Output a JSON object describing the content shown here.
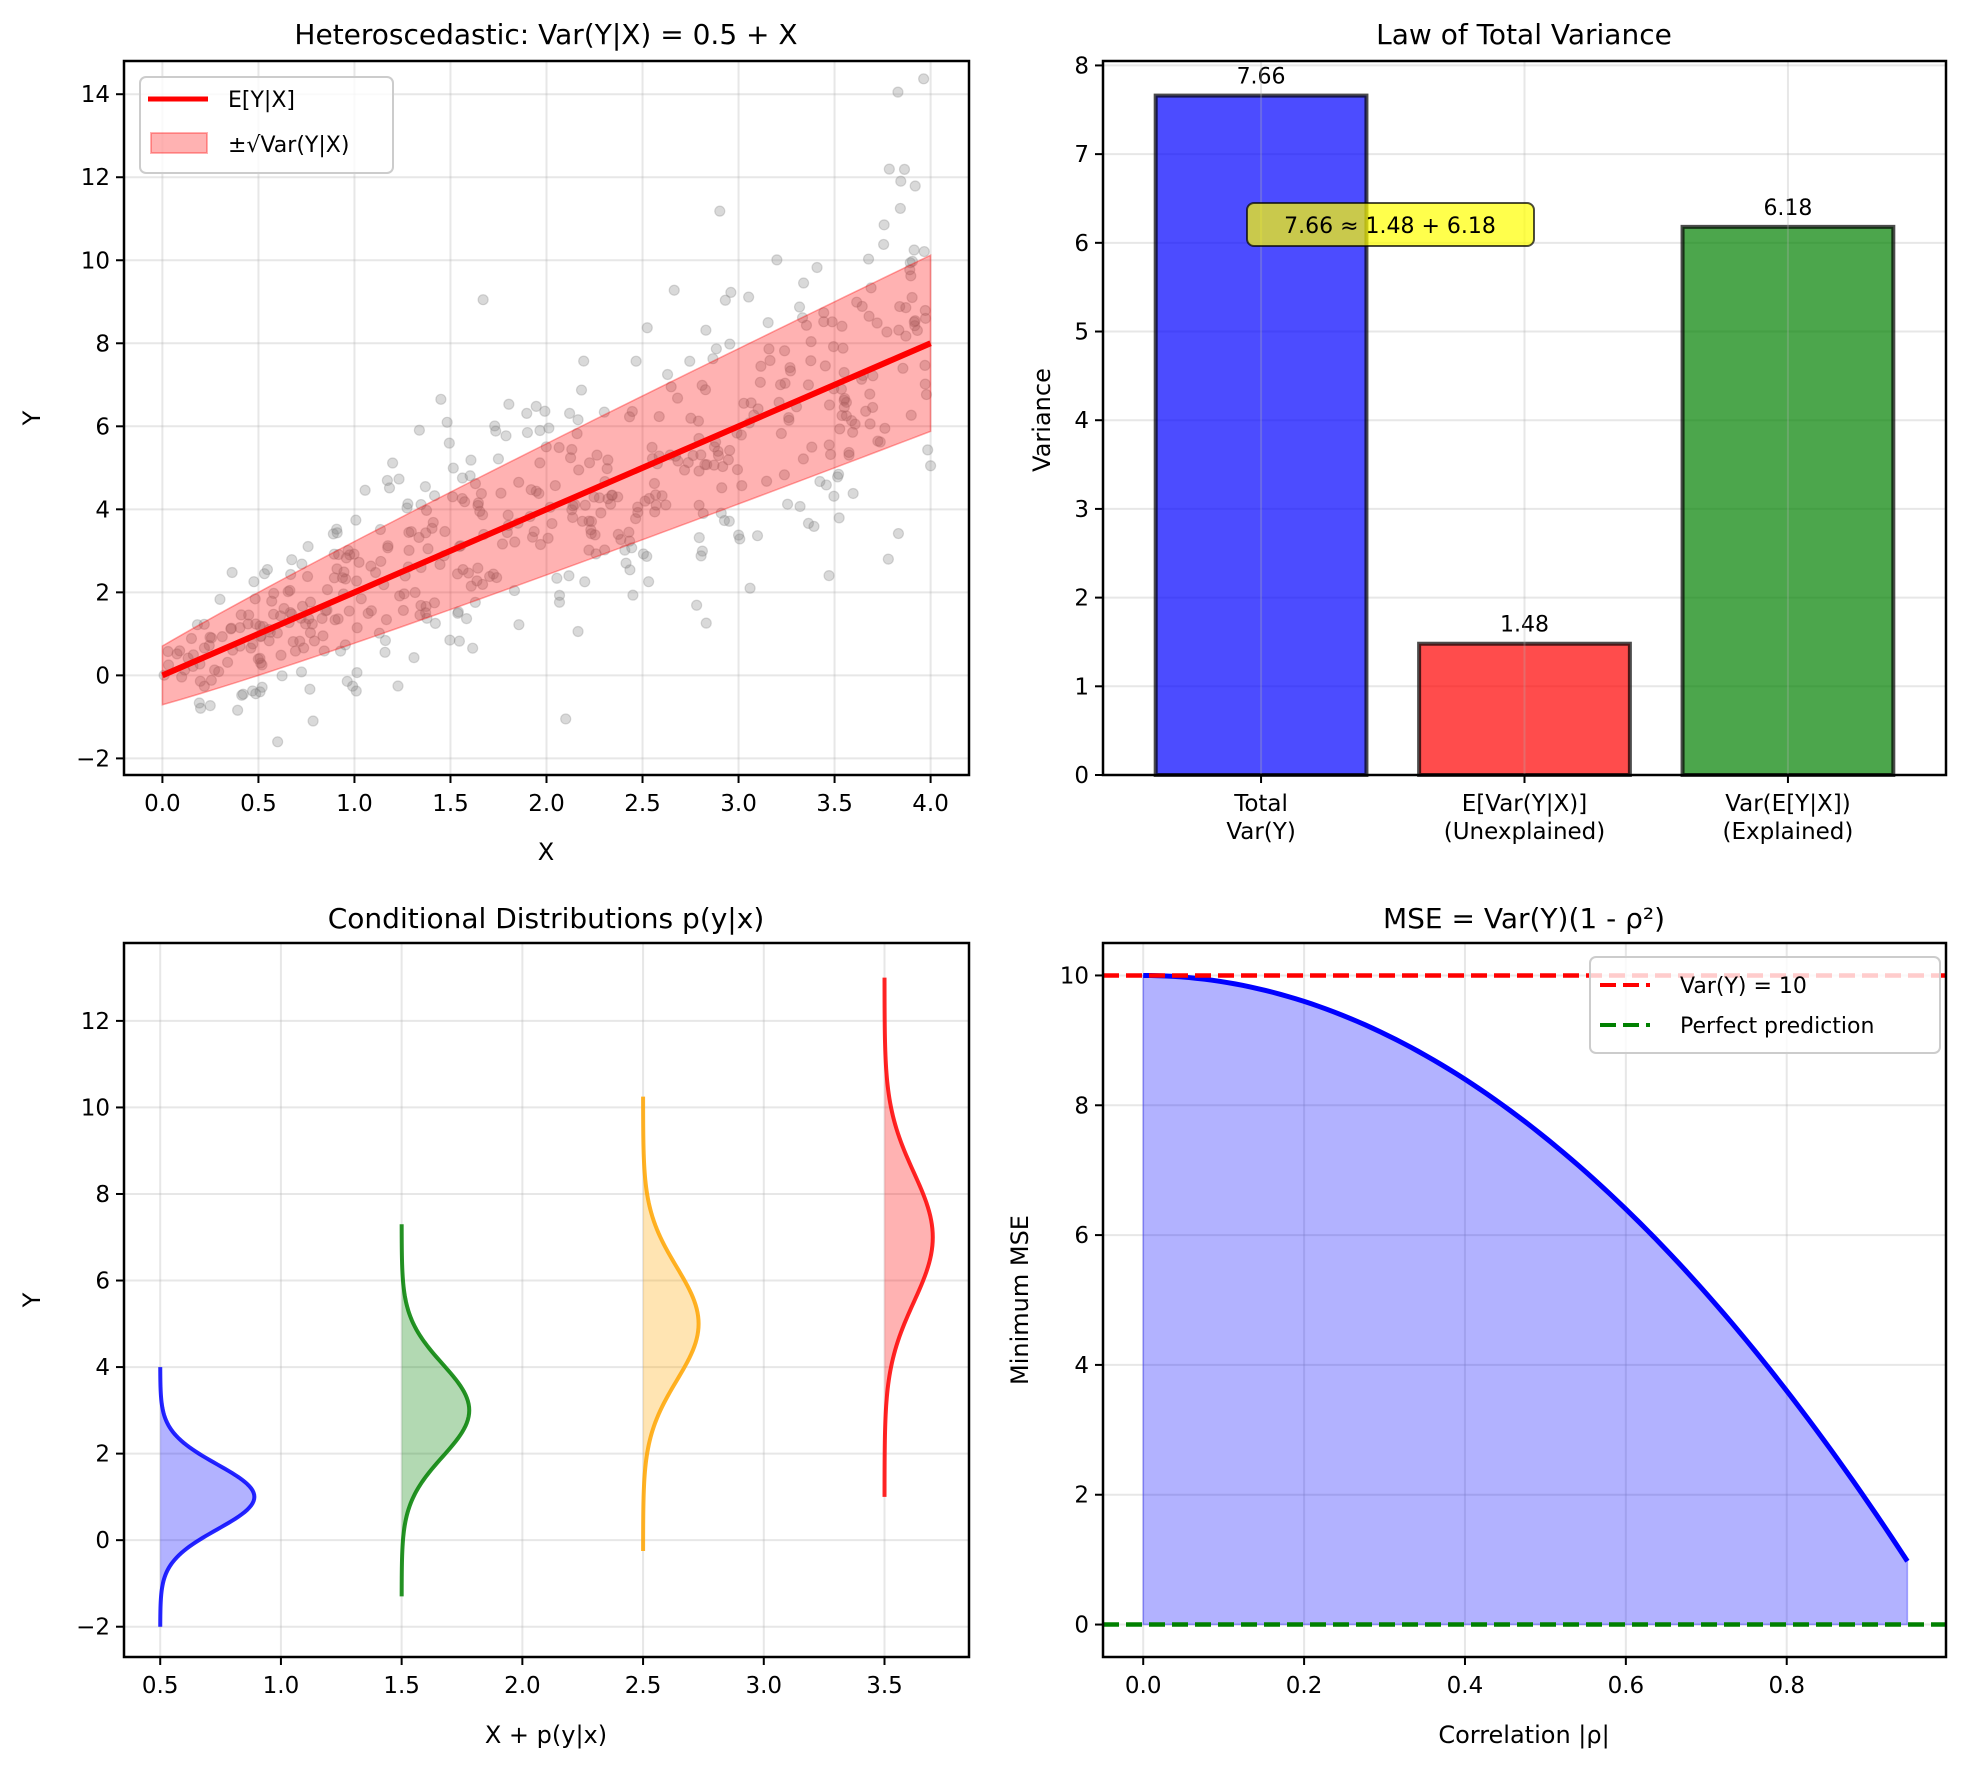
{
  "chart_data": [
    {
      "id": "heteroscedastic",
      "type": "scatter",
      "title": "Heteroscedastic: Var(Y|X) = 0.5 + X",
      "xlabel": "X",
      "ylabel": "Y",
      "xlim": [
        -0.2,
        4.2
      ],
      "ylim": [
        -2.4,
        14.8
      ],
      "xticks": [
        0.0,
        0.5,
        1.0,
        1.5,
        2.0,
        2.5,
        3.0,
        3.5,
        4.0
      ],
      "xtick_labels": [
        "0.0",
        "0.5",
        "1.0",
        "1.5",
        "2.0",
        "2.5",
        "3.0",
        "3.5",
        "4.0"
      ],
      "yticks": [
        -2,
        0,
        2,
        4,
        6,
        8,
        10,
        12,
        14
      ],
      "ytick_labels": [
        "−2",
        "0",
        "2",
        "4",
        "6",
        "8",
        "10",
        "12",
        "14"
      ],
      "grid": true,
      "legend": {
        "placement": "top-left",
        "entries": [
          {
            "label": "E[Y|X]",
            "kind": "line",
            "color": "#ff0000"
          },
          {
            "label": "±√Var(Y|X)",
            "kind": "patch",
            "color": "#ff0000"
          }
        ]
      },
      "mean_line": {
        "label": "E[Y|X]",
        "slope": 2,
        "intercept": 0,
        "x_range": [
          0,
          4
        ],
        "color": "#ff0000"
      },
      "band": {
        "label": "±√Var(Y|X)",
        "variance_intercept": 0.5,
        "variance_slope": 1,
        "color": "#ff0000",
        "alpha": 0.3
      },
      "scatter": {
        "n_points": 500,
        "color": "#808080",
        "alpha": 0.3,
        "model": "Y = 2X + N(0, 0.5 + X)",
        "x_range": [
          0,
          4
        ],
        "notable_points": [
          [
            3.83,
            14.05
          ],
          [
            1.67,
            9.05
          ],
          [
            2.1,
            -1.05
          ],
          [
            0.6,
            -1.6
          ],
          [
            1.45,
            6.65
          ],
          [
            3.06,
            2.1
          ],
          [
            3.78,
            2.8
          ],
          [
            4.0,
            5.05
          ]
        ]
      }
    },
    {
      "id": "total-variance",
      "type": "bar",
      "title": "Law of Total Variance",
      "xlabel": "",
      "ylabel": "Variance",
      "categories": [
        "Total\nVar(Y)",
        "E[Var(Y|X)]\n(Unexplained)",
        "Var(E[Y|X])\n(Explained)"
      ],
      "category_lines": [
        [
          "Total",
          "Var(Y)"
        ],
        [
          "E[Var(Y|X)]",
          "(Unexplained)"
        ],
        [
          "Var(E[Y|X])",
          "(Explained)"
        ]
      ],
      "values": [
        7.66,
        1.48,
        6.18
      ],
      "value_labels": [
        "7.66",
        "1.48",
        "6.18"
      ],
      "colors": [
        "#0000ff",
        "#ff0000",
        "#008000"
      ],
      "bar_alpha": 0.7,
      "ylim": [
        0,
        8.05
      ],
      "yticks": [
        0,
        1,
        2,
        3,
        4,
        5,
        6,
        7,
        8
      ],
      "ytick_labels": [
        "0",
        "1",
        "2",
        "3",
        "4",
        "5",
        "6",
        "7",
        "8"
      ],
      "grid": true,
      "annotation": {
        "text": "7.66 ≈ 1.48 + 6.18",
        "x": 1,
        "y": 6.2,
        "box_color": "#ffff00"
      }
    },
    {
      "id": "conditional-distributions",
      "type": "area",
      "title": "Conditional Distributions p(y|x)",
      "xlabel": "X + p(y|x)",
      "ylabel": "Y",
      "xlim": [
        0.35,
        3.85
      ],
      "ylim": [
        -2.7,
        13.8
      ],
      "xticks": [
        0.5,
        1.0,
        1.5,
        2.0,
        2.5,
        3.0,
        3.5
      ],
      "xtick_labels": [
        "0.5",
        "1.0",
        "1.5",
        "2.0",
        "2.5",
        "3.0",
        "3.5"
      ],
      "yticks": [
        -2,
        0,
        2,
        4,
        6,
        8,
        10,
        12
      ],
      "ytick_labels": [
        "−2",
        "0",
        "2",
        "4",
        "6",
        "8",
        "10",
        "12"
      ],
      "grid": true,
      "series": [
        {
          "name": "x=0.5",
          "x": 0.5,
          "mean": 1,
          "std": 0.75,
          "y_range": [
            -2.0,
            4.0
          ],
          "peak_offset": 0.39,
          "color": "#0000ff"
        },
        {
          "name": "x=1.5",
          "x": 1.5,
          "mean": 3,
          "std": 1.07,
          "y_range": [
            -1.3,
            7.3
          ],
          "peak_offset": 0.28,
          "color": "#008000"
        },
        {
          "name": "x=2.5",
          "x": 2.5,
          "mean": 5,
          "std": 1.31,
          "y_range": [
            -0.25,
            10.25
          ],
          "peak_offset": 0.23,
          "color": "#ffa500"
        },
        {
          "name": "x=3.5",
          "x": 3.5,
          "mean": 7,
          "std": 1.5,
          "y_range": [
            1.0,
            13.0
          ],
          "peak_offset": 0.2,
          "color": "#ff0000"
        }
      ]
    },
    {
      "id": "mse",
      "type": "line",
      "title": "MSE = Var(Y)(1 - ρ²)",
      "xlabel": "Correlation |ρ|",
      "ylabel": "Minimum MSE",
      "xlim": [
        -0.05,
        0.998
      ],
      "ylim": [
        -0.5,
        10.5
      ],
      "xticks": [
        0.0,
        0.2,
        0.4,
        0.6,
        0.8
      ],
      "xtick_labels": [
        "0.0",
        "0.2",
        "0.4",
        "0.6",
        "0.8"
      ],
      "yticks": [
        0,
        2,
        4,
        6,
        8,
        10
      ],
      "ytick_labels": [
        "0",
        "2",
        "4",
        "6",
        "8",
        "10"
      ],
      "grid": true,
      "var_y": 10,
      "rho_range": [
        0,
        0.95
      ],
      "x": [
        0.0,
        0.1,
        0.2,
        0.3,
        0.4,
        0.5,
        0.6,
        0.7,
        0.8,
        0.9,
        0.95
      ],
      "y": [
        10.0,
        9.9,
        9.6,
        9.1,
        8.4,
        7.5,
        6.4,
        5.1,
        3.6,
        1.9,
        0.975
      ],
      "curve_color": "#0000ff",
      "fill_color": "#0000ff",
      "hlines": [
        {
          "label": "Var(Y) = 10",
          "y": 10,
          "color": "#ff0000",
          "style": "dashed"
        },
        {
          "label": "Perfect prediction",
          "y": 0,
          "color": "#008000",
          "style": "dashed"
        }
      ],
      "legend": {
        "placement": "top-right",
        "entries": [
          "Var(Y) = 10",
          "Perfect prediction"
        ]
      }
    }
  ]
}
